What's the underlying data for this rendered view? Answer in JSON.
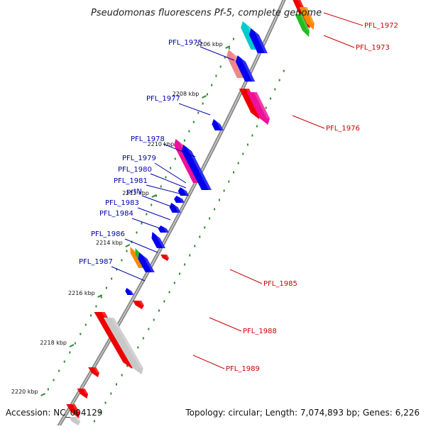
{
  "header": {
    "title": "Pseudomonas fluorescens Pf-5, complete genome"
  },
  "footer": {
    "accession": "Accession: NC_004129",
    "summary": "Topology: circular; Length: 7,074,893 bp; Genes: 6,226"
  },
  "colors": {
    "backbone": "#8a8a8a",
    "dots": "#2e8b2e",
    "forward_label": "#0000aa",
    "reverse_label": "#cc0000",
    "blue": "#0000ee",
    "red": "#ee0000",
    "pink": "#ee1199",
    "salmon": "#ee8888",
    "cyan": "#00cccc",
    "orange": "#ff8800",
    "green": "#22bb22",
    "gray": "#c8c8c8"
  },
  "scale_ticks": [
    "2206 kbp",
    "2208 kbp",
    "2210 kbp",
    "2212 kbp",
    "2214 kbp",
    "2216 kbp",
    "2218 kbp",
    "2220 kbp"
  ],
  "forward_labels": [
    "PFL_1975",
    "PFL_1977",
    "PFL_1978",
    "PFL_1979",
    "PFL_1980",
    "PFL_1981",
    "prtN",
    "PFL_1983",
    "PFL_1984",
    "PFL_1986",
    "PFL_1987"
  ],
  "reverse_labels": [
    "PFL_1972",
    "PFL_1973",
    "PFL_1976",
    "PFL_1985",
    "PFL_1988",
    "PFL_1989"
  ]
}
